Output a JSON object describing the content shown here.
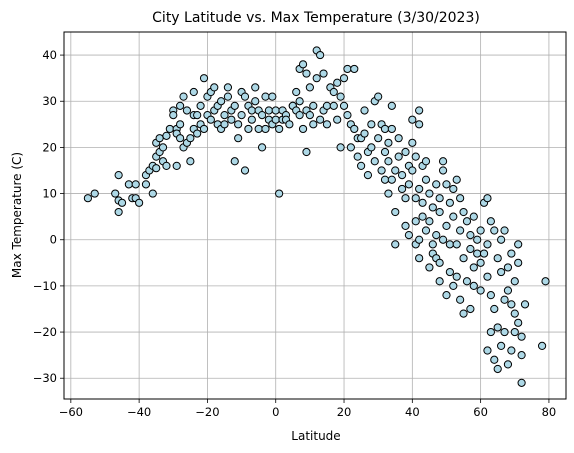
{
  "chart_data": {
    "type": "scatter",
    "title": "City Latitude vs. Max Temperature (3/30/2023)",
    "xlabel": "Latitude",
    "ylabel": "Max Temperature (C)",
    "xlim": [
      -62,
      85
    ],
    "ylim": [
      -34.5,
      45
    ],
    "xticks": [
      -60,
      -40,
      -20,
      0,
      20,
      40,
      60,
      80
    ],
    "yticks": [
      -30,
      -20,
      -10,
      0,
      10,
      20,
      30,
      40
    ],
    "grid": true,
    "marker_face_color": "#add8e6",
    "marker_edge_color": "#000000",
    "points": [
      [
        -55,
        9
      ],
      [
        -53,
        10
      ],
      [
        -47,
        10
      ],
      [
        -46,
        8.5
      ],
      [
        -46,
        6
      ],
      [
        -46,
        14
      ],
      [
        -45,
        8
      ],
      [
        -43,
        12
      ],
      [
        -42,
        9
      ],
      [
        -41,
        12
      ],
      [
        -41,
        9
      ],
      [
        -40,
        8
      ],
      [
        -38,
        14
      ],
      [
        -38,
        12
      ],
      [
        -37,
        15
      ],
      [
        -36,
        10
      ],
      [
        -36,
        16
      ],
      [
        -35,
        18
      ],
      [
        -35,
        21
      ],
      [
        -35,
        15.5
      ],
      [
        -34,
        19
      ],
      [
        -34,
        22
      ],
      [
        -33,
        17
      ],
      [
        -33,
        20
      ],
      [
        -32,
        22.5
      ],
      [
        -32,
        16
      ],
      [
        -31,
        24
      ],
      [
        -30,
        28
      ],
      [
        -30,
        27
      ],
      [
        -29,
        24
      ],
      [
        -29,
        23
      ],
      [
        -29,
        16
      ],
      [
        -28,
        25
      ],
      [
        -28,
        29
      ],
      [
        -28,
        22
      ],
      [
        -27,
        31
      ],
      [
        -27,
        20
      ],
      [
        -26,
        21
      ],
      [
        -26,
        28
      ],
      [
        -25,
        22
      ],
      [
        -25,
        17
      ],
      [
        -24,
        24
      ],
      [
        -24,
        27
      ],
      [
        -24,
        32
      ],
      [
        -23,
        23
      ],
      [
        -23,
        27
      ],
      [
        -22,
        25
      ],
      [
        -22,
        29
      ],
      [
        -21,
        35
      ],
      [
        -21,
        24
      ],
      [
        -20,
        27
      ],
      [
        -20,
        31
      ],
      [
        -19,
        26
      ],
      [
        -19,
        32
      ],
      [
        -18,
        33
      ],
      [
        -18,
        28
      ],
      [
        -17,
        25
      ],
      [
        -17,
        29
      ],
      [
        -16,
        24
      ],
      [
        -16,
        30
      ],
      [
        -15,
        27
      ],
      [
        -15,
        25
      ],
      [
        -14,
        31
      ],
      [
        -14,
        33
      ],
      [
        -13,
        26
      ],
      [
        -13,
        28
      ],
      [
        -12,
        29
      ],
      [
        -12,
        17
      ],
      [
        -11,
        22
      ],
      [
        -11,
        25
      ],
      [
        -10,
        32
      ],
      [
        -10,
        27
      ],
      [
        -9,
        15
      ],
      [
        -9,
        31
      ],
      [
        -8,
        29
      ],
      [
        -8,
        24
      ],
      [
        -7,
        26
      ],
      [
        -7,
        28
      ],
      [
        -6,
        33
      ],
      [
        -6,
        30
      ],
      [
        -5,
        28
      ],
      [
        -5,
        24
      ],
      [
        -4,
        20
      ],
      [
        -4,
        27
      ],
      [
        -3,
        24
      ],
      [
        -3,
        31
      ],
      [
        -2,
        28
      ],
      [
        -2,
        26
      ],
      [
        -1,
        31
      ],
      [
        -1,
        25
      ],
      [
        0,
        26
      ],
      [
        0,
        28
      ],
      [
        1,
        10
      ],
      [
        1,
        24
      ],
      [
        2,
        26
      ],
      [
        2,
        28
      ],
      [
        3,
        27
      ],
      [
        3,
        26
      ],
      [
        4,
        25
      ],
      [
        5,
        29
      ],
      [
        5,
        29
      ],
      [
        6,
        28
      ],
      [
        6,
        32
      ],
      [
        7,
        30
      ],
      [
        7,
        37
      ],
      [
        7,
        27
      ],
      [
        8,
        24
      ],
      [
        8,
        38
      ],
      [
        9,
        36
      ],
      [
        9,
        28
      ],
      [
        9,
        19
      ],
      [
        10,
        33
      ],
      [
        10,
        27
      ],
      [
        11,
        25
      ],
      [
        11,
        29
      ],
      [
        12,
        41
      ],
      [
        12,
        35
      ],
      [
        13,
        26
      ],
      [
        13,
        40
      ],
      [
        14,
        28
      ],
      [
        14,
        36
      ],
      [
        15,
        29
      ],
      [
        15,
        25
      ],
      [
        16,
        33
      ],
      [
        17,
        29
      ],
      [
        17,
        32
      ],
      [
        18,
        26
      ],
      [
        18,
        34
      ],
      [
        19,
        31
      ],
      [
        19,
        20
      ],
      [
        20,
        29
      ],
      [
        20,
        35
      ],
      [
        21,
        37
      ],
      [
        21,
        27
      ],
      [
        22,
        20
      ],
      [
        22,
        25
      ],
      [
        23,
        24
      ],
      [
        23,
        37
      ],
      [
        24,
        22
      ],
      [
        24,
        18
      ],
      [
        25,
        22
      ],
      [
        25,
        16
      ],
      [
        26,
        28
      ],
      [
        26,
        23
      ],
      [
        27,
        19
      ],
      [
        27,
        14
      ],
      [
        28,
        25
      ],
      [
        28,
        20
      ],
      [
        29,
        30
      ],
      [
        29,
        17
      ],
      [
        30,
        31
      ],
      [
        30,
        22
      ],
      [
        31,
        25
      ],
      [
        31,
        15
      ],
      [
        32,
        24
      ],
      [
        32,
        19
      ],
      [
        32,
        13
      ],
      [
        33,
        17
      ],
      [
        33,
        21
      ],
      [
        33,
        10
      ],
      [
        34,
        24
      ],
      [
        34,
        29
      ],
      [
        34,
        13
      ],
      [
        35,
        15
      ],
      [
        35,
        6
      ],
      [
        35,
        -1
      ],
      [
        36,
        22
      ],
      [
        36,
        18
      ],
      [
        37,
        11
      ],
      [
        37,
        14
      ],
      [
        38,
        19
      ],
      [
        38,
        9
      ],
      [
        38,
        3
      ],
      [
        39,
        12
      ],
      [
        39,
        16
      ],
      [
        39,
        1
      ],
      [
        40,
        26
      ],
      [
        40,
        21
      ],
      [
        40,
        15
      ],
      [
        41,
        18
      ],
      [
        41,
        9
      ],
      [
        41,
        4
      ],
      [
        41,
        -1
      ],
      [
        42,
        25
      ],
      [
        42,
        28
      ],
      [
        42,
        11
      ],
      [
        42,
        0
      ],
      [
        42,
        -4
      ],
      [
        43,
        16
      ],
      [
        43,
        8
      ],
      [
        43,
        5
      ],
      [
        44,
        13
      ],
      [
        44,
        17
      ],
      [
        44,
        2
      ],
      [
        45,
        10
      ],
      [
        45,
        4
      ],
      [
        45,
        -6
      ],
      [
        46,
        7
      ],
      [
        46,
        -1
      ],
      [
        46,
        -3
      ],
      [
        47,
        12
      ],
      [
        47,
        1
      ],
      [
        47,
        -4
      ],
      [
        48,
        9
      ],
      [
        48,
        6
      ],
      [
        48,
        -5
      ],
      [
        48,
        -9
      ],
      [
        49,
        15
      ],
      [
        49,
        17
      ],
      [
        49,
        0
      ],
      [
        50,
        12
      ],
      [
        50,
        3
      ],
      [
        50,
        -12
      ],
      [
        51,
        8
      ],
      [
        51,
        -7
      ],
      [
        51,
        -1
      ],
      [
        52,
        11
      ],
      [
        52,
        5
      ],
      [
        52,
        -10
      ],
      [
        53,
        13
      ],
      [
        53,
        -1
      ],
      [
        53,
        -8
      ],
      [
        54,
        9
      ],
      [
        54,
        2
      ],
      [
        54,
        -13
      ],
      [
        55,
        6
      ],
      [
        55,
        -4
      ],
      [
        55,
        -16
      ],
      [
        56,
        4
      ],
      [
        56,
        -9
      ],
      [
        57,
        1
      ],
      [
        57,
        -2
      ],
      [
        57,
        -15
      ],
      [
        58,
        5
      ],
      [
        58,
        -6
      ],
      [
        58,
        -10
      ],
      [
        59,
        0
      ],
      [
        59,
        -3
      ],
      [
        60,
        2
      ],
      [
        60,
        -11
      ],
      [
        60,
        -5
      ],
      [
        61,
        8
      ],
      [
        61,
        -3
      ],
      [
        62,
        9
      ],
      [
        62,
        -1
      ],
      [
        62,
        -8
      ],
      [
        62,
        -24
      ],
      [
        63,
        4
      ],
      [
        63,
        -12
      ],
      [
        63,
        -20
      ],
      [
        64,
        2
      ],
      [
        64,
        -15
      ],
      [
        64,
        -26
      ],
      [
        65,
        -4
      ],
      [
        65,
        -19
      ],
      [
        65,
        -28
      ],
      [
        66,
        0
      ],
      [
        66,
        -7
      ],
      [
        66,
        -23
      ],
      [
        67,
        2
      ],
      [
        67,
        -13
      ],
      [
        67,
        -20
      ],
      [
        68,
        -6
      ],
      [
        68,
        -11
      ],
      [
        68,
        -27
      ],
      [
        69,
        -3
      ],
      [
        69,
        -14
      ],
      [
        69,
        -24
      ],
      [
        70,
        -16
      ],
      [
        70,
        -9
      ],
      [
        70,
        -20
      ],
      [
        71,
        -1
      ],
      [
        71,
        -5
      ],
      [
        71,
        -18
      ],
      [
        72,
        -21
      ],
      [
        72,
        -25
      ],
      [
        72,
        -31
      ],
      [
        73,
        -14
      ],
      [
        78,
        -23
      ],
      [
        79,
        -9
      ]
    ]
  }
}
